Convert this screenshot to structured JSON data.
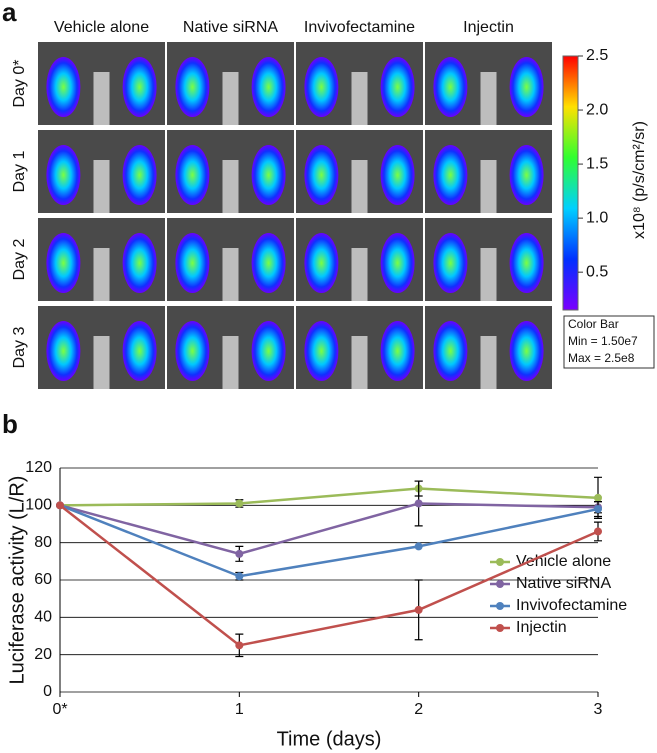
{
  "panel_a": {
    "label": "a",
    "columns": [
      "Vehicle alone",
      "Native siRNA",
      "Invivofectamine",
      "Injectin"
    ],
    "rows": [
      "Day 0*",
      "Day 1",
      "Day 2",
      "Day 3"
    ],
    "colorbar": {
      "label": "x10⁸ (p/s/cm²/sr)",
      "clim": [
        0.15,
        2.5
      ],
      "ticks": [
        0.5,
        {
          "value": 1.0,
          "label": "1.0"
        },
        1.5,
        {
          "value": 2.0,
          "label": "2.0"
        },
        2.5
      ],
      "box": [
        "Color Bar",
        "Min = 1.50e7",
        "Max = 2.5e8"
      ]
    }
  },
  "panel_b": {
    "label": "b"
  },
  "chart_data": {
    "type": "line",
    "x_label": "Time (days)",
    "y_label": "Luciferase activity (L/R)",
    "x": [
      0,
      1,
      2,
      3
    ],
    "xlim": [
      0,
      3
    ],
    "xticks": [
      {
        "value": 0,
        "label": "0*"
      },
      1,
      2,
      3
    ],
    "ylim": [
      0,
      120
    ],
    "yticks": [
      0,
      20,
      40,
      60,
      80,
      100,
      120
    ],
    "grid": true,
    "legend": "right",
    "series": [
      {
        "name": "Vehicle alone",
        "color": "#9bbb59",
        "values": [
          100,
          101,
          109,
          104
        ],
        "errors": [
          0,
          2,
          4,
          11
        ]
      },
      {
        "name": "Native siRNA",
        "color": "#8064a2",
        "values": [
          100,
          74,
          101,
          99
        ],
        "errors": [
          0,
          4,
          12,
          3
        ]
      },
      {
        "name": "Invivofectamine",
        "color": "#4f81bd",
        "values": [
          100,
          62,
          78,
          98
        ],
        "errors": [
          0,
          2,
          0,
          4
        ]
      },
      {
        "name": "Injectin",
        "color": "#c0504d",
        "values": [
          100,
          25,
          44,
          86
        ],
        "errors": [
          0,
          6,
          16,
          5
        ]
      }
    ]
  }
}
